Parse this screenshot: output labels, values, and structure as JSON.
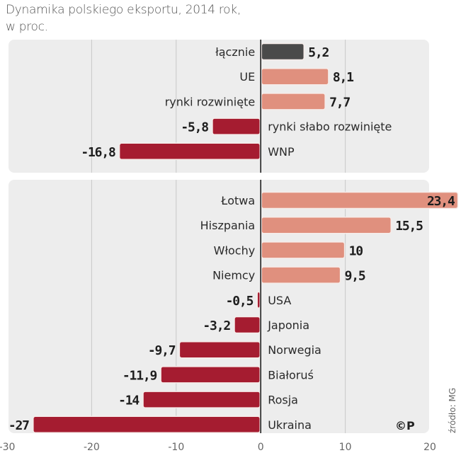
{
  "chart_data": {
    "type": "bar",
    "orientation": "horizontal",
    "title": "Dynamika polskiego eksportu, 2014 rok,",
    "subtitle": "w proc.",
    "xlabel": "",
    "ylabel": "",
    "xlim": [
      -30,
      20
    ],
    "xticks": [
      -30,
      -20,
      -10,
      0,
      10,
      20
    ],
    "xtick_labels": [
      "-30",
      "-20",
      "-10",
      "0",
      "10",
      "20"
    ],
    "grid": true,
    "source": "źródło: MG",
    "logo": "©P",
    "colors": {
      "total": "#4a4a4a",
      "positive": "#e0907e",
      "negative": "#a51c30",
      "panel": "#ededed",
      "gridline": "#c8c8c8",
      "axis": "#222222"
    },
    "groups": [
      {
        "name": "regions",
        "categories": [
          "łącznie",
          "UE",
          "rynki rozwinięte",
          "rynki słabo rozwinięte",
          "WNP"
        ],
        "values": [
          5.2,
          8.1,
          7.7,
          -5.8,
          -16.8
        ],
        "value_labels": [
          "5,2",
          "8,1",
          "7,7",
          "-5,8",
          "-16,8"
        ],
        "kinds": [
          "total",
          "positive",
          "positive",
          "negative",
          "negative"
        ]
      },
      {
        "name": "countries",
        "categories": [
          "Łotwa",
          "Hiszpania",
          "Włochy",
          "Niemcy",
          "USA",
          "Japonia",
          "Norwegia",
          "Białoruś",
          "Rosja",
          "Ukraina"
        ],
        "values": [
          23.4,
          15.5,
          10,
          9.5,
          -0.5,
          -3.2,
          -9.7,
          -11.9,
          -14,
          -27
        ],
        "value_labels": [
          "23,4",
          "15,5",
          "10",
          "9,5",
          "-0,5",
          "-3,2",
          "-9,7",
          "-11,9",
          "-14",
          "-27"
        ],
        "kinds": [
          "positive",
          "positive",
          "positive",
          "positive",
          "negative",
          "negative",
          "negative",
          "negative",
          "negative",
          "negative"
        ]
      }
    ]
  }
}
